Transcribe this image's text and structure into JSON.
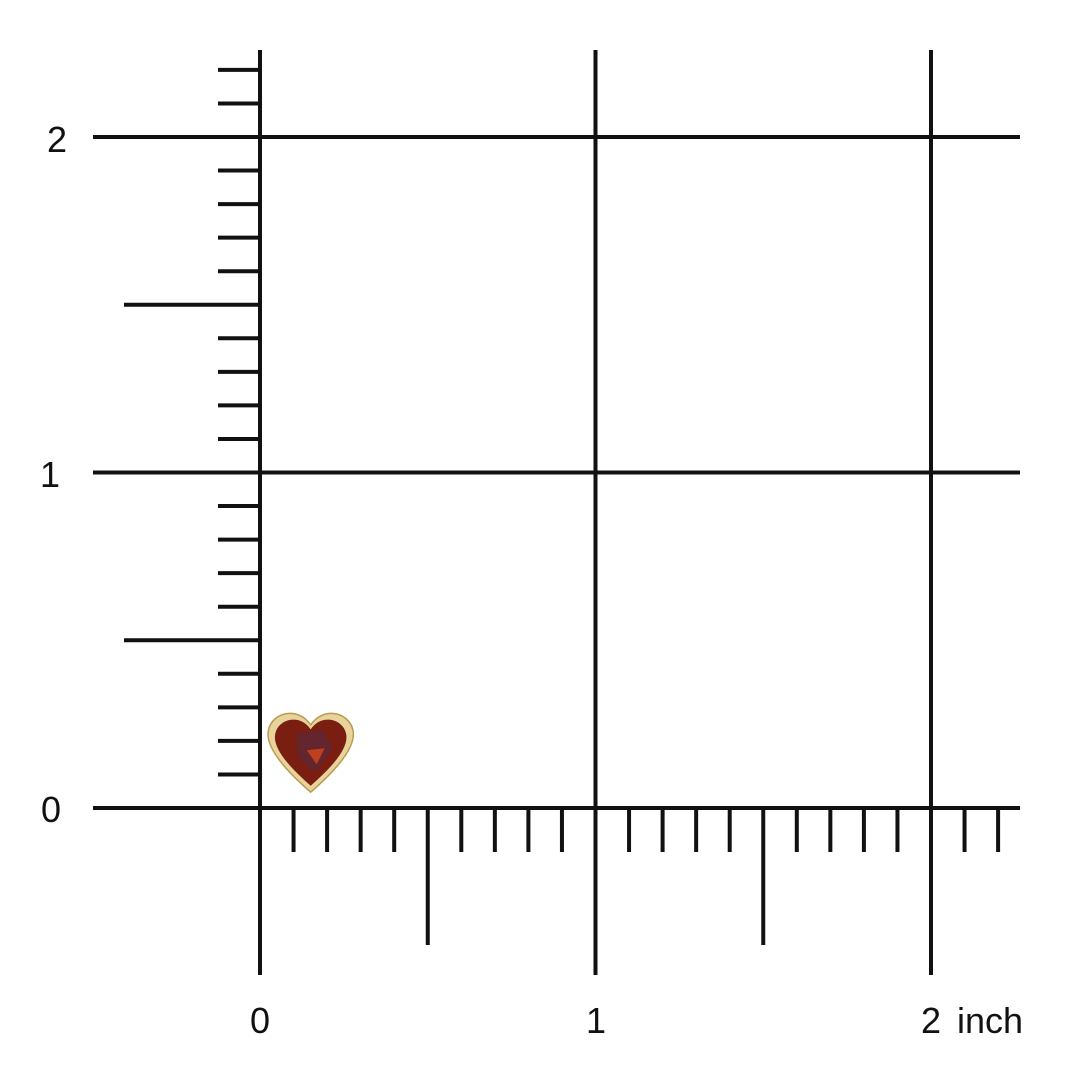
{
  "ruler": {
    "unit_label": "inch",
    "x_labels": [
      "0",
      "1",
      "2 inch"
    ],
    "y_labels": [
      "0",
      "1",
      "2"
    ],
    "x_range": [
      0,
      2.2
    ],
    "y_range": [
      0,
      2.2
    ],
    "minor_step": 0.1,
    "line_color": "#111111"
  },
  "product": {
    "shape": "heart",
    "stone_color": "#7a1e12",
    "setting_color": "#e8d49a",
    "width_inch": 0.25,
    "position_inch": [
      0.16,
      0.19
    ]
  }
}
